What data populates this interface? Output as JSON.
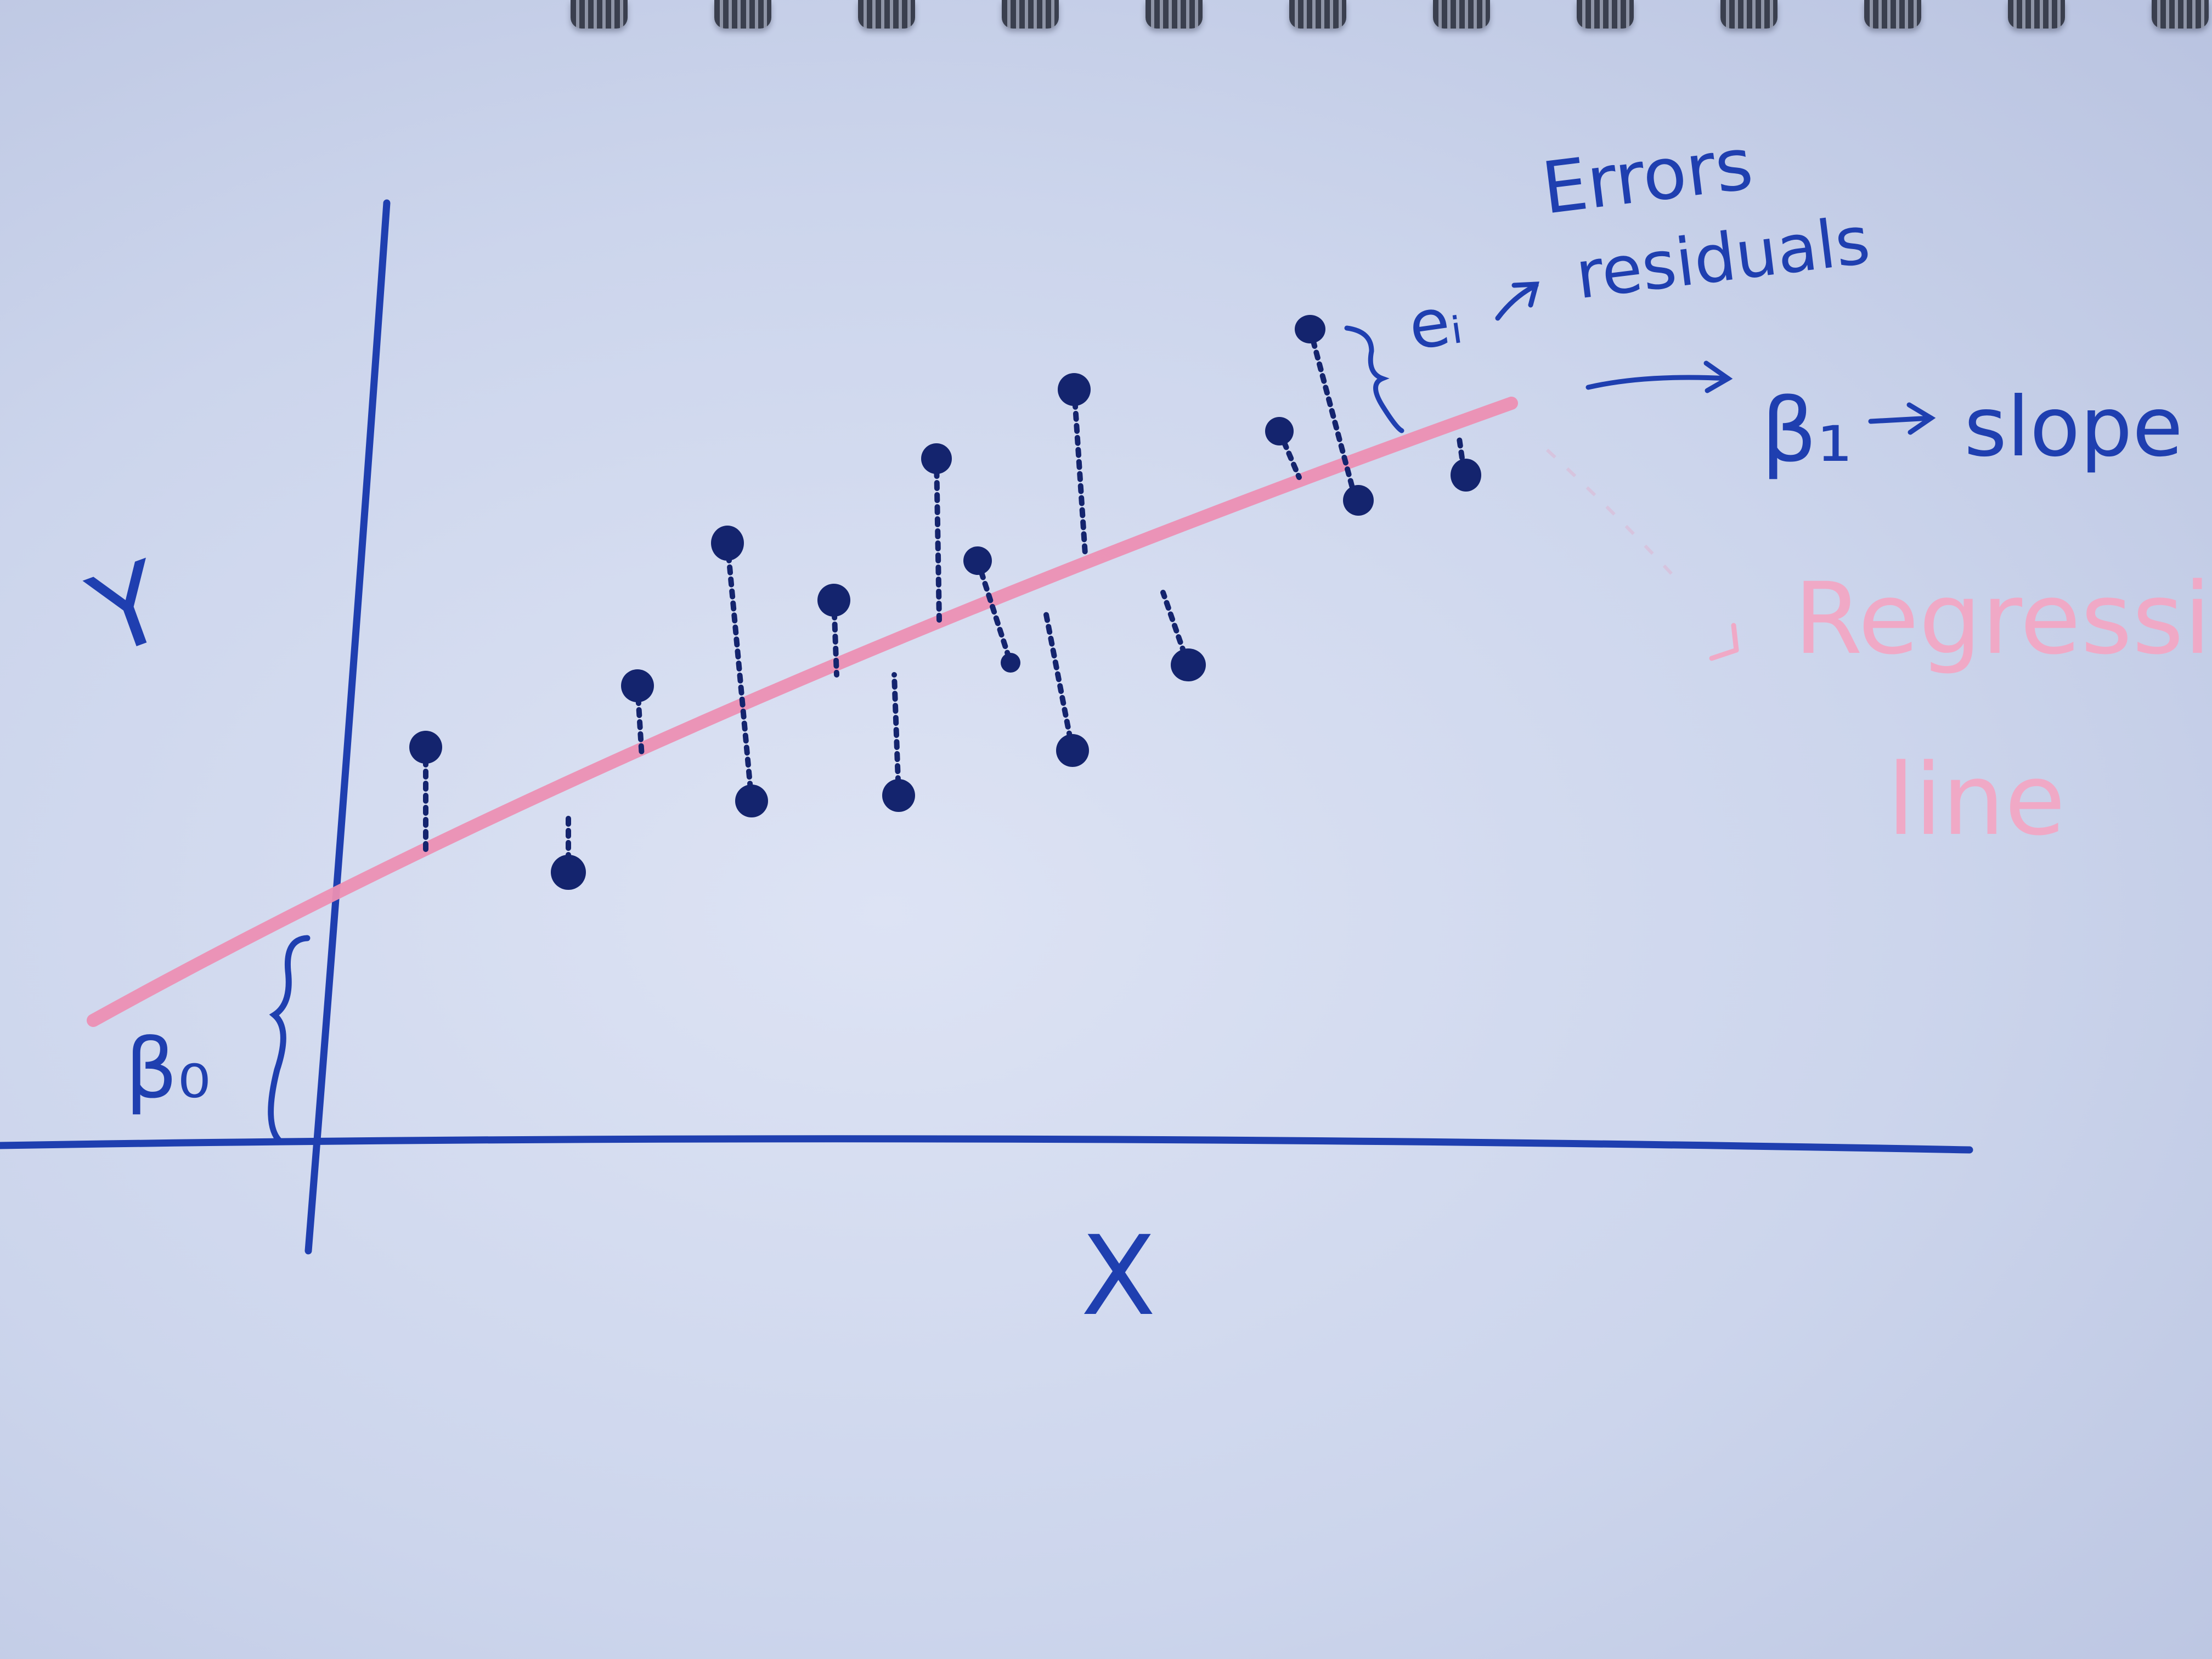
{
  "labels": {
    "y_axis": "Y",
    "x_axis": "X",
    "beta0": "β₀",
    "ei": "eᵢ",
    "errors_line1": "Errors",
    "errors_line2": "residuals",
    "beta1": "β₁",
    "slope": "slope",
    "regression_line1": "Regression",
    "regression_line2": "line"
  },
  "colors": {
    "ink_blue": "#1f3fb0",
    "dot_navy": "#14246e",
    "regression_pink": "#ec8fb3",
    "faded_pink": "#f0a9c6"
  },
  "icons": {
    "arrow": "right-arrow-icon",
    "brace": "curly-brace-icon"
  }
}
